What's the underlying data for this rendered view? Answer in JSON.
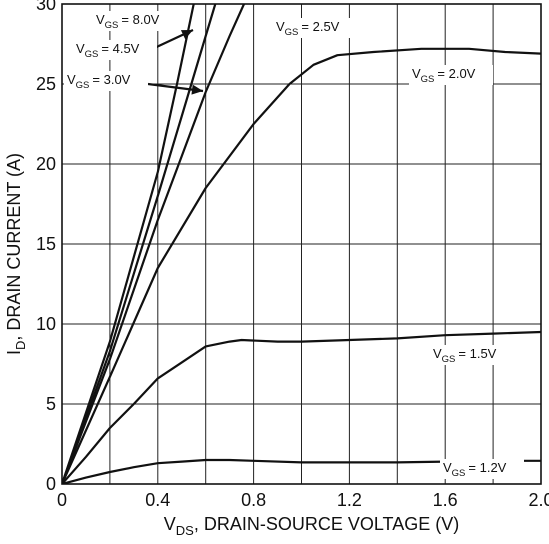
{
  "chart_data": {
    "type": "line",
    "title": "",
    "xlabel": {
      "prefix": "V",
      "sub": "DS",
      "rest": ", DRAIN-SOURCE VOLTAGE (V)"
    },
    "ylabel": {
      "prefix": "I",
      "sub": "D",
      "rest": ", DRAIN CURRENT (A)"
    },
    "xlim": [
      0,
      2.0
    ],
    "ylim": [
      0,
      30
    ],
    "x_ticks": [
      "0",
      "0.4",
      "0.8",
      "1.2",
      "1.6",
      "2.0"
    ],
    "x_tick_values": [
      0,
      0.4,
      0.8,
      1.2,
      1.6,
      2.0
    ],
    "y_ticks": [
      "0",
      "5",
      "10",
      "15",
      "20",
      "25",
      "30"
    ],
    "y_tick_values": [
      0,
      5,
      10,
      15,
      20,
      25,
      30
    ],
    "grid": {
      "x_step": 0.2,
      "y_step": 5
    },
    "series": [
      {
        "label": "= 8.0V",
        "values": [
          [
            0,
            0
          ],
          [
            0.2,
            8.9
          ],
          [
            0.4,
            19.5
          ],
          [
            0.48,
            25
          ],
          [
            0.55,
            30
          ]
        ]
      },
      {
        "label": "= 4.5V",
        "values": [
          [
            0,
            0
          ],
          [
            0.2,
            8.3
          ],
          [
            0.4,
            18
          ],
          [
            0.5,
            23
          ],
          [
            0.6,
            28
          ],
          [
            0.64,
            30
          ]
        ]
      },
      {
        "label": "= 3.0V",
        "values": [
          [
            0,
            0
          ],
          [
            0.2,
            7.8
          ],
          [
            0.4,
            16.5
          ],
          [
            0.5,
            20.5
          ],
          [
            0.6,
            24.5
          ],
          [
            0.7,
            28
          ],
          [
            0.76,
            30
          ]
        ]
      },
      {
        "label": "= 2.5V",
        "values": [
          [
            0,
            0
          ],
          [
            0.2,
            6.7
          ],
          [
            0.4,
            13.5
          ],
          [
            0.6,
            18.5
          ],
          [
            0.8,
            22.5
          ],
          [
            0.95,
            25
          ],
          [
            1.05,
            26.2
          ],
          [
            1.15,
            26.8
          ],
          [
            1.3,
            27
          ],
          [
            1.5,
            27.2
          ],
          [
            1.7,
            27.2
          ],
          [
            1.85,
            27
          ],
          [
            2.0,
            26.9
          ]
        ]
      },
      {
        "label": "= 2.0V",
        "values": [
          [
            0,
            0
          ],
          [
            0.1,
            1.7
          ],
          [
            0.2,
            3.5
          ],
          [
            0.3,
            5
          ],
          [
            0.4,
            6.6
          ],
          [
            0.5,
            7.6
          ],
          [
            0.6,
            8.6
          ],
          [
            0.7,
            8.9
          ],
          [
            0.75,
            9
          ],
          [
            0.9,
            8.9
          ],
          [
            1.0,
            8.9
          ],
          [
            1.2,
            9
          ],
          [
            1.4,
            9.1
          ],
          [
            1.6,
            9.3
          ],
          [
            1.8,
            9.4
          ],
          [
            2.0,
            9.5
          ]
        ]
      },
      {
        "label": "= 1.5V",
        "values": [
          [
            0,
            0
          ],
          [
            0.1,
            0.4
          ],
          [
            0.2,
            0.75
          ],
          [
            0.3,
            1.05
          ],
          [
            0.4,
            1.3
          ],
          [
            0.5,
            1.4
          ],
          [
            0.6,
            1.5
          ],
          [
            0.7,
            1.5
          ],
          [
            0.8,
            1.45
          ],
          [
            1.0,
            1.35
          ],
          [
            1.2,
            1.35
          ],
          [
            1.4,
            1.35
          ],
          [
            1.6,
            1.4
          ],
          [
            1.8,
            1.45
          ],
          [
            2.0,
            1.45
          ]
        ]
      }
    ],
    "annotations": [
      {
        "prefix": "V",
        "sub": "GS",
        "text": "= 8.0V"
      },
      {
        "prefix": "V",
        "sub": "GS",
        "text": "= 4.5V"
      },
      {
        "prefix": "V",
        "sub": "GS",
        "text": "= 3.0V"
      },
      {
        "prefix": "V",
        "sub": "GS",
        "text": "= 2.5V"
      },
      {
        "prefix": "V",
        "sub": "GS",
        "text": "= 2.0V"
      },
      {
        "prefix": "V",
        "sub": "GS",
        "text": "= 1.5V"
      },
      {
        "prefix": "V",
        "sub": "GS",
        "text": "= 1.2V"
      }
    ],
    "line_color": "#111111",
    "grid_color": "#222222"
  }
}
